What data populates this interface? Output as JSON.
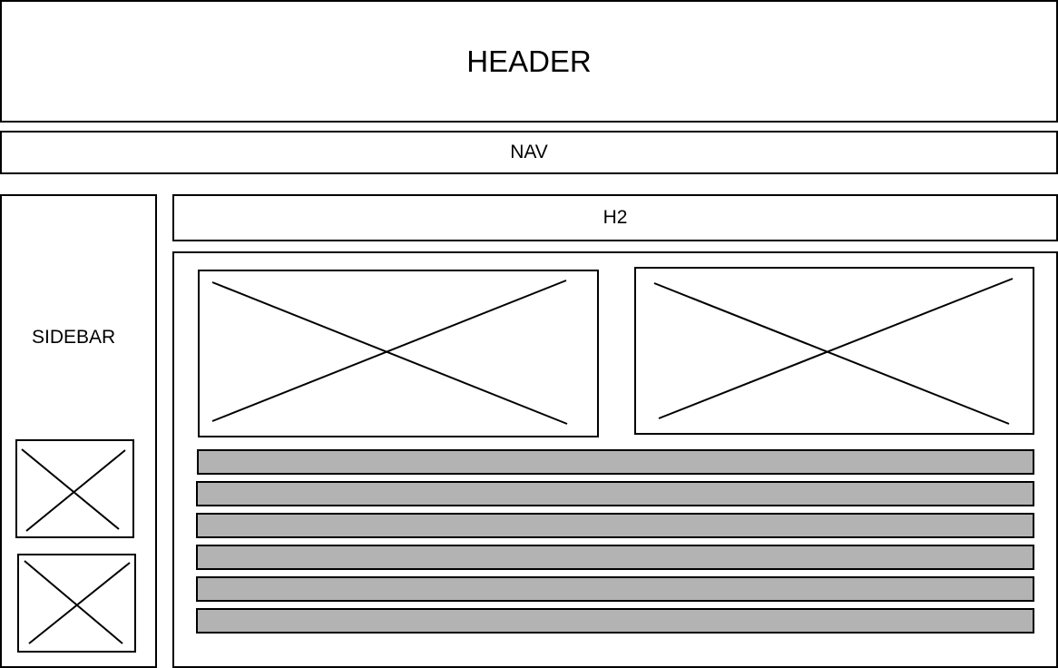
{
  "header": {
    "label": "HEADER"
  },
  "nav": {
    "label": "NAV"
  },
  "sidebar": {
    "label": "SIDEBAR",
    "images": [
      {
        "name": "sidebar-image-1"
      },
      {
        "name": "sidebar-image-2"
      }
    ]
  },
  "main": {
    "heading": "H2",
    "images": [
      {
        "name": "content-image-1"
      },
      {
        "name": "content-image-2"
      }
    ],
    "text_lines": 6,
    "colors": {
      "border": "#000000",
      "text_bar_fill": "#b3b3b3",
      "background": "#ffffff"
    }
  }
}
